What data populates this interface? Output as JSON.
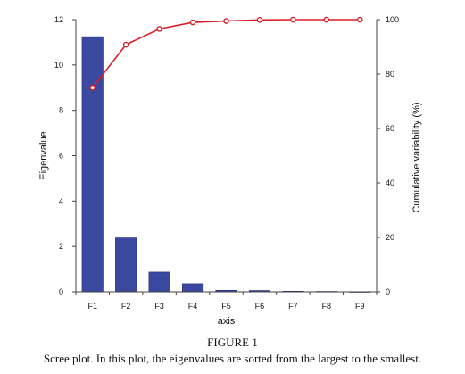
{
  "figure_label": "FIGURE 1",
  "caption": "Scree plot. In this plot, the eigenvalues are sorted from the largest to the smallest.",
  "colors": {
    "bar": "#3b48a0",
    "line": "#d81f26",
    "axis": "#444444"
  },
  "chart_data": {
    "type": "bar",
    "title": "",
    "xlabel": "axis",
    "ylabel": "Eigenvalue",
    "y2label": "Cumulative variability (%)",
    "categories": [
      "F1",
      "F2",
      "F3",
      "F4",
      "F5",
      "F6",
      "F7",
      "F8",
      "F9"
    ],
    "ylim": [
      0,
      12
    ],
    "yticks": [
      0,
      2,
      4,
      6,
      8,
      10,
      12
    ],
    "y2lim": [
      0,
      100
    ],
    "y2ticks": [
      0,
      20,
      40,
      60,
      80,
      100
    ],
    "series": [
      {
        "type": "bar",
        "axis": "left",
        "values": [
          11.25,
          2.38,
          0.87,
          0.36,
          0.07,
          0.06,
          0.03,
          0.02,
          0.01
        ]
      },
      {
        "type": "line",
        "axis": "right",
        "values": [
          75.0,
          90.8,
          96.6,
          99.0,
          99.5,
          99.9,
          100,
          100,
          100
        ]
      }
    ],
    "grid": false,
    "legend": "none"
  }
}
